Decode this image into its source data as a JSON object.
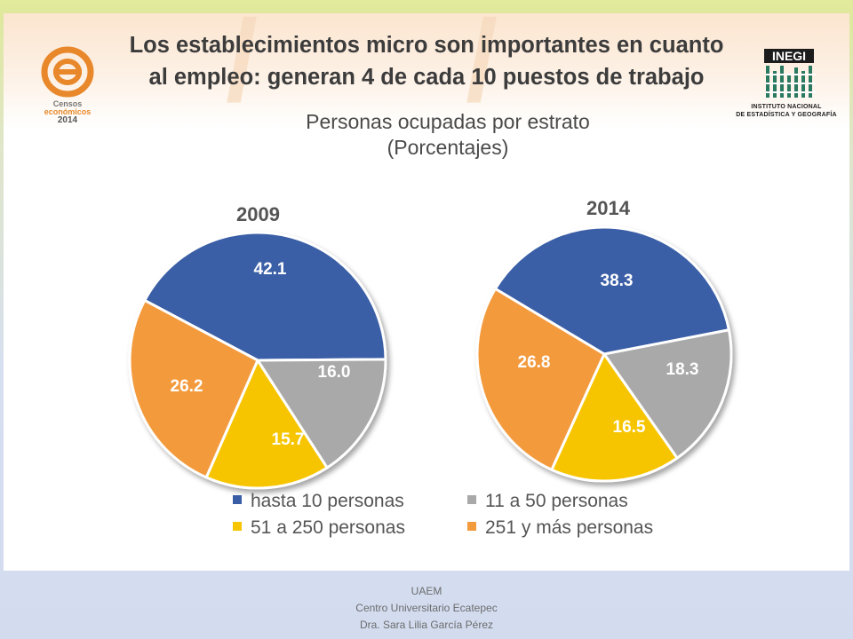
{
  "slide": {
    "title_line1": "Los establecimientos micro son importantes en cuanto",
    "title_line2": "al empleo: generan 4 de cada 10 puestos de trabajo",
    "subtitle_line1": "Personas ocupadas por estrato",
    "subtitle_line2": "(Porcentajes)"
  },
  "logos": {
    "censos_line1": "Censos",
    "censos_line2": "económicos",
    "censos_year": "2014",
    "inegi_text": "INEGI",
    "inegi_line1": "INSTITUTO NACIONAL",
    "inegi_line2": "DE ESTADÍSTICA Y GEOGRAFÍA"
  },
  "chart_data": [
    {
      "type": "pie",
      "title": "2009",
      "categories": [
        "hasta 10 personas",
        "11 a 50 personas",
        "51 a 250 personas",
        "251 y más personas"
      ],
      "values": [
        42.1,
        16.0,
        15.7,
        26.2
      ],
      "value_labels": [
        "42.1",
        "16.0",
        "15.7",
        "26.2"
      ],
      "colors": [
        "#3a5ea6",
        "#a9a9a9",
        "#f7c500",
        "#f39a3c"
      ]
    },
    {
      "type": "pie",
      "title": "2014",
      "categories": [
        "hasta 10 personas",
        "11 a 50 personas",
        "51 a 250 personas",
        "251 y más personas"
      ],
      "values": [
        38.3,
        18.3,
        16.5,
        26.8
      ],
      "value_labels": [
        "38.3",
        "18.3",
        "16.5",
        "26.8"
      ],
      "colors": [
        "#3a5ea6",
        "#a9a9a9",
        "#f7c500",
        "#f39a3c"
      ]
    }
  ],
  "legend": [
    {
      "label": "hasta 10 personas",
      "color": "#3a5ea6"
    },
    {
      "label": "11 a 50 personas",
      "color": "#a9a9a9"
    },
    {
      "label": "51 a 250 personas",
      "color": "#f7c500"
    },
    {
      "label": "251 y más personas",
      "color": "#f39a3c"
    }
  ],
  "footer": {
    "line1": "UAEM",
    "line2": "Centro Universitario Ecatepec",
    "line3": "Dra. Sara Lilia García Pérez"
  }
}
